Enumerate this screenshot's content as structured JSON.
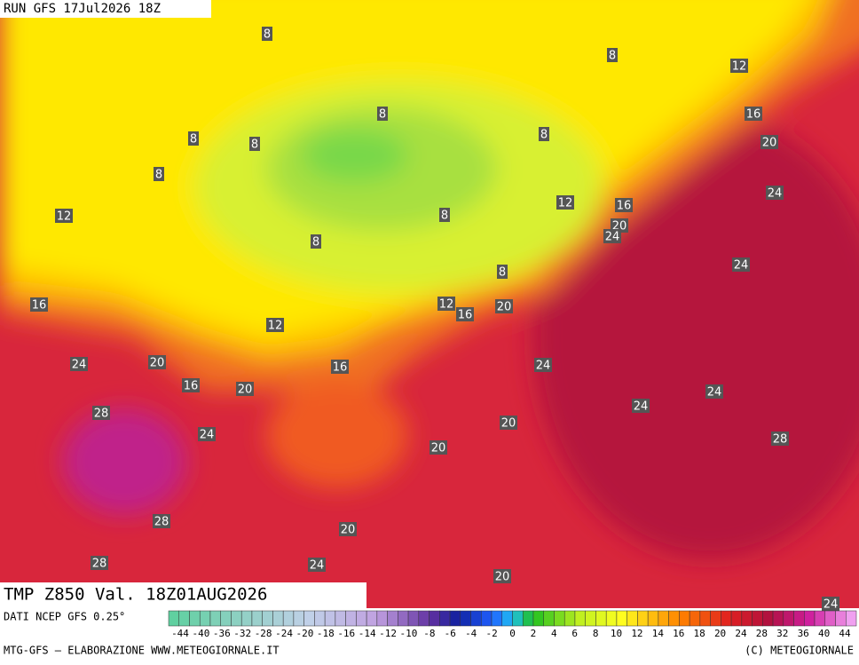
{
  "header": {
    "title": "RUN GFS 17Jul2026 18Z"
  },
  "contour_labels": [
    8,
    8,
    12,
    8,
    16,
    8,
    8,
    8,
    20,
    8,
    24,
    12,
    12,
    16,
    8,
    20,
    24,
    8,
    24,
    8,
    16,
    12,
    16,
    20,
    12,
    24,
    20,
    16,
    24,
    16,
    20,
    24,
    24,
    28,
    20,
    24,
    28,
    20,
    28,
    20,
    28,
    24,
    20,
    24
  ],
  "footer": {
    "variable": "TMP Z850 Val. 18Z01AUG2026",
    "source": "DATI NCEP GFS 0.25°",
    "colorbar_ticks": [
      -44,
      -40,
      -36,
      -32,
      -28,
      -24,
      -20,
      -18,
      -16,
      -14,
      -12,
      -10,
      -8,
      -6,
      -4,
      -2,
      0,
      2,
      4,
      6,
      8,
      10,
      12,
      14,
      16,
      18,
      20,
      24,
      28,
      32,
      36,
      40,
      44
    ],
    "credit": "MTG-GFS — ELABORAZIONE WWW.METEOGIORNALE.IT",
    "copyright": "(C) METEOGIORNALE"
  }
}
